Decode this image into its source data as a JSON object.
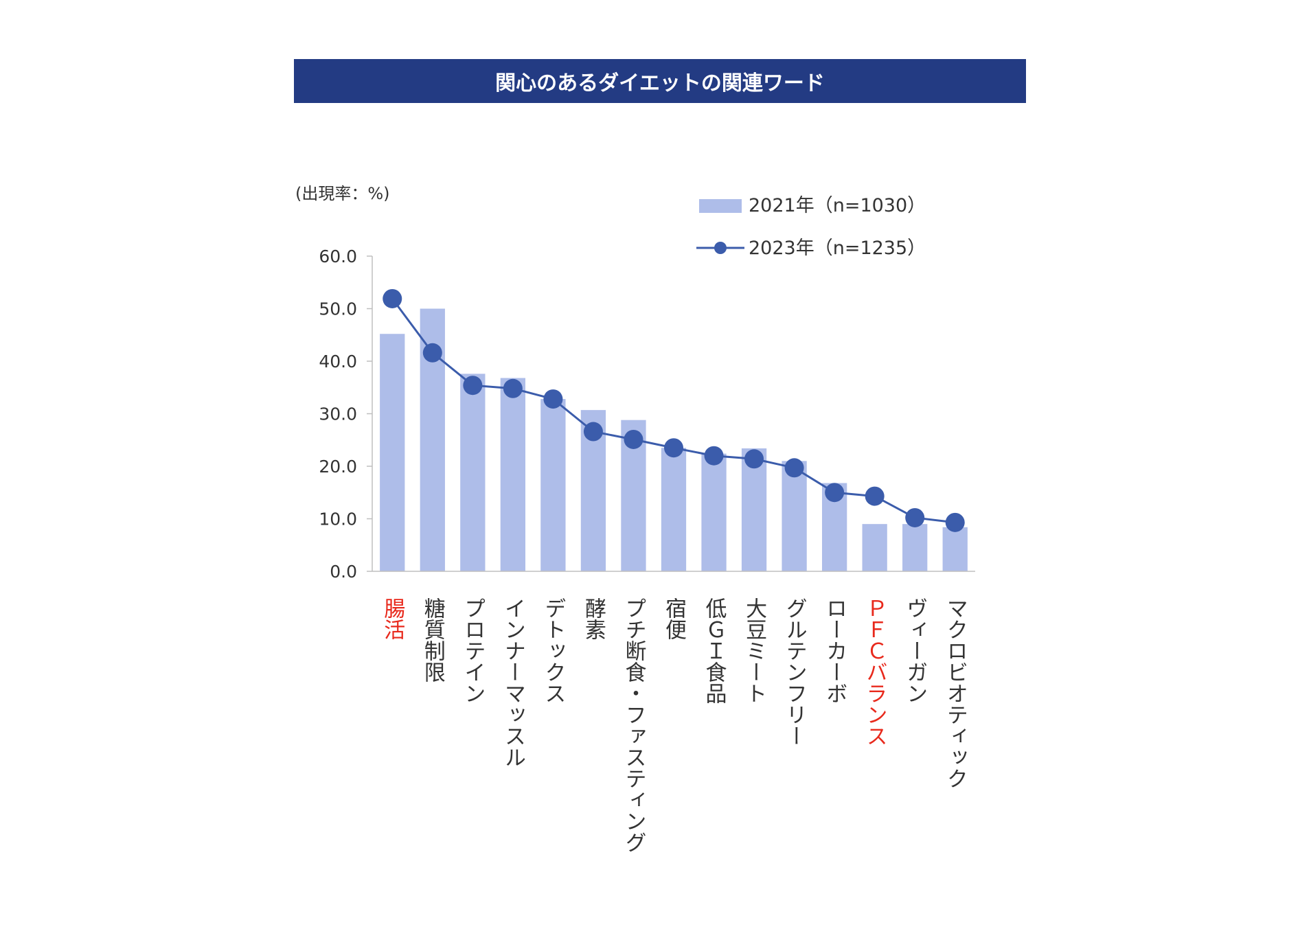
{
  "colors": {
    "banner_bg": "#233b83",
    "banner_text": "#ffffff",
    "bar": "#aebde9",
    "line": "#3b5cab",
    "axis": "#bfbfbf",
    "text": "#333333",
    "highlight": "#e8291c"
  },
  "banner": {
    "title": "関心のあるダイエットの関連ワード"
  },
  "chart_data": {
    "type": "bar+line",
    "title": "関心のあるダイエットの関連ワード",
    "ylabel": "(出現率：%)",
    "xlabel": "",
    "ylim": [
      0,
      60
    ],
    "yticks": [
      "0.0",
      "10.0",
      "20.0",
      "30.0",
      "40.0",
      "50.0",
      "60.0"
    ],
    "legend_position": "top-right",
    "categories": [
      "腸活",
      "糖質制限",
      "プロテイン",
      "インナーマッスル",
      "デトックス",
      "酵素",
      "プチ断食・ファスティング",
      "宿便",
      "低ＧＩ食品",
      "大豆ミート",
      "グルテンフリー",
      "ローカーボ",
      "ＰＦＣバランス",
      "ヴィーガン",
      "マクロビオティック"
    ],
    "highlighted_categories": [
      "腸活",
      "ＰＦＣバランス"
    ],
    "series": [
      {
        "name": "2021年（n=1030）",
        "type": "bar",
        "values": [
          45.2,
          50.0,
          37.6,
          36.8,
          32.8,
          30.7,
          28.8,
          23.5,
          22.4,
          23.4,
          21.0,
          16.8,
          9.0,
          9.0,
          8.4
        ]
      },
      {
        "name": "2023年（n=1235）",
        "type": "line",
        "values": [
          51.9,
          41.6,
          35.4,
          34.8,
          32.8,
          26.6,
          25.1,
          23.5,
          22.0,
          21.4,
          19.7,
          15.0,
          14.3,
          10.2,
          9.3
        ]
      }
    ]
  }
}
